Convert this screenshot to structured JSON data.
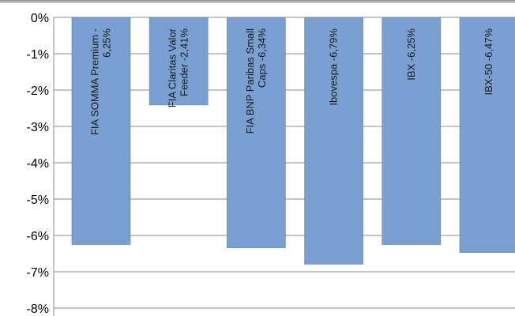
{
  "chart_data": {
    "type": "bar",
    "categories": [
      "FIA SOMMA Premium -6,25%",
      "FIA Claritas Valor Feeder -2,41%",
      "FIA BNP Paribas Small Caps -6,34%",
      "Ibovespa -6,79%",
      "IBX -6,25%",
      "IBX-50 -6,47%"
    ],
    "values": [
      -6.25,
      -2.41,
      -6.34,
      -6.79,
      -6.25,
      -6.47
    ],
    "bar_labels": [
      [
        "FIA SOMMA Premium -",
        "6,25%"
      ],
      [
        "FIA Claritas Valor",
        "Feeder -2,41%"
      ],
      [
        "FIA BNP Paribas Small",
        "Caps -6,34%"
      ],
      [
        "Ibovespa -6,79%"
      ],
      [
        "IBX -6,25%"
      ],
      [
        "IBX-50 -6,47%"
      ]
    ],
    "yticks": [
      "0%",
      "-1%",
      "-2%",
      "-3%",
      "-4%",
      "-5%",
      "-6%",
      "-7%",
      "-8%"
    ],
    "ylim": [
      -8,
      0
    ],
    "grid": true,
    "bar_color": "#7aa0d2",
    "title": "",
    "xlabel": "",
    "ylabel": ""
  }
}
